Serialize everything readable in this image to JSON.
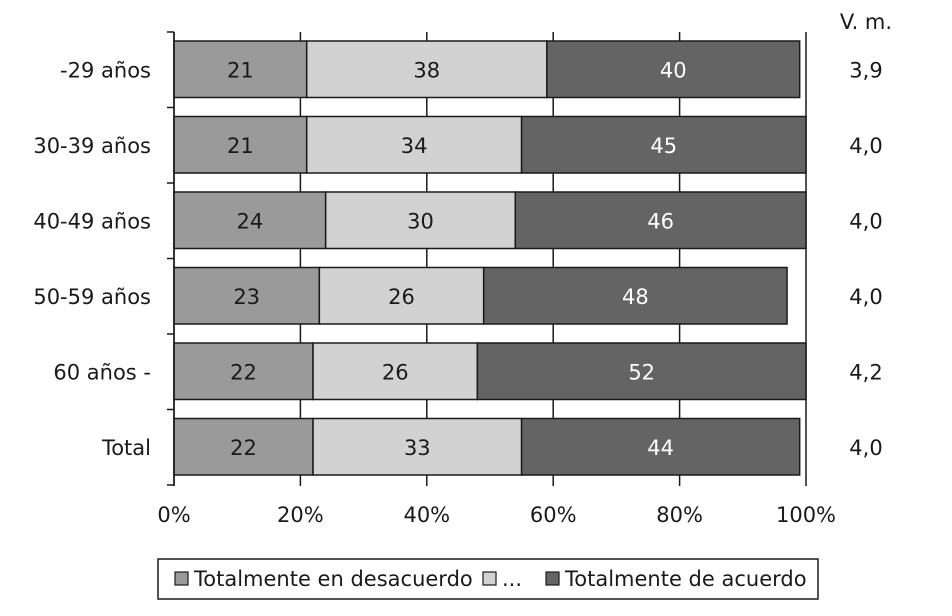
{
  "chart_data": {
    "type": "bar",
    "orientation": "horizontal",
    "stacked": true,
    "categories": [
      "-29 años",
      "30-39 años",
      "40-49 años",
      "50-59 años",
      "60 años -",
      "Total"
    ],
    "series": [
      {
        "name": "Totalmente en desacuerdo",
        "values": [
          21,
          21,
          24,
          23,
          22,
          22
        ],
        "color": "#9a9a9a",
        "label_color": "#1a1a1a"
      },
      {
        "name": "...",
        "values": [
          38,
          34,
          30,
          26,
          26,
          33
        ],
        "color": "#d2d2d2",
        "label_color": "#1a1a1a"
      },
      {
        "name": "Totalmente de acuerdo",
        "values": [
          40,
          45,
          46,
          48,
          52,
          44
        ],
        "color": "#646464",
        "label_color": "#ffffff"
      }
    ],
    "xlim": [
      0,
      100
    ],
    "x_ticks": [
      "0%",
      "20%",
      "40%",
      "60%",
      "80%",
      "100%"
    ],
    "grid": true,
    "legend_position": "bottom",
    "side_column": {
      "header": "V. m.",
      "values": [
        "3,9",
        "4,0",
        "4,0",
        "4,0",
        "4,2",
        "4,0"
      ]
    }
  }
}
